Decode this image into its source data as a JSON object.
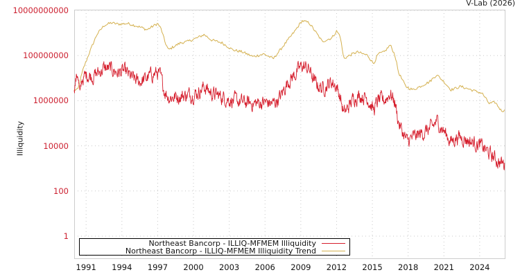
{
  "header": {
    "credit": "V-Lab (2026)"
  },
  "colors": {
    "illiquidity": "#d51d2c",
    "trend": "#d4b04e",
    "tick_label_y": "#cc1f2f",
    "grid": "#c8c8c8",
    "axis": "#cccccc"
  },
  "chart_data": {
    "type": "line",
    "title": "",
    "xlabel": "",
    "ylabel": "Illiquidity",
    "yscale": "log",
    "ylim": [
      0.1,
      10000000000
    ],
    "xlim": [
      1990.0,
      2026.1
    ],
    "grid": true,
    "legend_position": "bottom-left inside",
    "y_ticks": [
      "10000000000",
      "100000000",
      "1000000",
      "10000",
      "100",
      "1"
    ],
    "y_tick_values": [
      10000000000,
      100000000,
      1000000,
      10000,
      100,
      1
    ],
    "x_ticks": [
      "1991",
      "1994",
      "1997",
      "2000",
      "2003",
      "2006",
      "2009",
      "2012",
      "2015",
      "2018",
      "2021",
      "2024"
    ],
    "x_tick_values": [
      1991,
      1994,
      1997,
      2000,
      2003,
      2006,
      2009,
      2012,
      2015,
      2018,
      2021,
      2024
    ],
    "series": [
      {
        "name": "Northeast Bancorp - ILLIQ-MFMEM Illiquidity",
        "color": "#d51d2c",
        "x": [
          1990.0,
          1990.3,
          1990.5,
          1990.65,
          1991.05,
          1991.6,
          1992.2,
          1992.5,
          1993.1,
          1993.7,
          1994.2,
          1994.8,
          1995.35,
          1995.9,
          1996.5,
          1997.0,
          1997.2,
          1997.55,
          1997.9,
          1998.5,
          1999.4,
          2000.3,
          2000.9,
          2001.5,
          2002.4,
          2003.2,
          2004.1,
          2005.0,
          2005.9,
          2006.7,
          2007.3,
          2007.9,
          2008.5,
          2009.1,
          2009.7,
          2010.2,
          2010.8,
          2011.6,
          2012.0,
          2012.3,
          2012.6,
          2012.9,
          2013.5,
          2014.0,
          2014.6,
          2015.1,
          2015.5,
          2016.0,
          2016.5,
          2016.9,
          2017.2,
          2017.5,
          2017.9,
          2018.3,
          2018.9,
          2019.5,
          2020.0,
          2020.4,
          2021.0,
          2021.6,
          2022.1,
          2022.7,
          2023.3,
          2023.8,
          2024.4,
          2025.0,
          2025.2,
          2025.5,
          2026.1
        ],
        "log10_values": [
          6.63,
          7.24,
          6.17,
          6.93,
          7.15,
          7.09,
          7.3,
          7.45,
          7.39,
          7.24,
          7.3,
          7.02,
          6.84,
          6.93,
          7.15,
          7.24,
          7.09,
          6.48,
          6.17,
          6.17,
          6.24,
          6.33,
          6.63,
          6.33,
          6.17,
          6.02,
          5.93,
          5.87,
          5.93,
          5.87,
          6.17,
          6.84,
          7.15,
          7.55,
          7.39,
          6.78,
          6.54,
          6.84,
          6.63,
          6.17,
          5.41,
          5.63,
          6.17,
          6.24,
          6.12,
          5.57,
          6.02,
          6.02,
          6.33,
          5.93,
          5.02,
          4.65,
          4.18,
          4.34,
          4.49,
          4.65,
          4.8,
          5.1,
          4.65,
          4.18,
          4.4,
          4.34,
          4.18,
          4.09,
          3.88,
          3.57,
          3.48,
          3.33,
          3.17
        ]
      },
      {
        "name": "Northeast Bancorp - ILLIQ-MFMEM Illiquidity Trend",
        "color": "#d4b04e",
        "x": [
          1990.0,
          1990.3,
          1990.75,
          1991.3,
          1991.9,
          1992.5,
          1993.1,
          1993.7,
          1994.5,
          1995.1,
          1995.7,
          1996.1,
          1996.6,
          1997.0,
          1997.3,
          1997.6,
          1997.9,
          1998.3,
          1998.9,
          1999.5,
          2000.3,
          2000.9,
          2001.5,
          2002.4,
          2003.3,
          2004.1,
          2005.0,
          2005.9,
          2006.7,
          2007.6,
          2008.5,
          2009.1,
          2009.7,
          2010.2,
          2010.8,
          2011.6,
          2012.0,
          2012.3,
          2012.6,
          2013.1,
          2013.7,
          2014.6,
          2015.1,
          2015.5,
          2016.0,
          2016.5,
          2016.9,
          2017.2,
          2017.8,
          2018.4,
          2019.0,
          2019.8,
          2020.4,
          2021.0,
          2021.6,
          2022.4,
          2023.3,
          2024.2,
          2024.8,
          2025.3,
          2025.8,
          2026.1
        ],
        "log10_values": [
          6.48,
          6.48,
          7.4,
          8.16,
          8.93,
          9.33,
          9.45,
          9.39,
          9.42,
          9.33,
          9.23,
          9.14,
          9.3,
          9.42,
          9.17,
          8.62,
          8.25,
          8.38,
          8.56,
          8.62,
          8.78,
          8.93,
          8.69,
          8.56,
          8.25,
          8.16,
          7.95,
          8.07,
          7.86,
          8.47,
          9.08,
          9.54,
          9.45,
          9.08,
          8.62,
          8.78,
          9.08,
          8.87,
          7.86,
          8.01,
          8.16,
          8.01,
          7.64,
          8.07,
          8.16,
          8.47,
          8.01,
          7.24,
          6.63,
          6.48,
          6.63,
          6.84,
          7.15,
          6.84,
          6.48,
          6.63,
          6.48,
          6.33,
          5.87,
          5.93,
          5.56,
          5.56
        ]
      }
    ]
  },
  "legend": {
    "items": [
      {
        "label": "Northeast Bancorp - ILLIQ-MFMEM Illiquidity",
        "color": "#d51d2c"
      },
      {
        "label": "Northeast Bancorp - ILLIQ-MFMEM Illiquidity Trend",
        "color": "#d4b04e"
      }
    ]
  }
}
